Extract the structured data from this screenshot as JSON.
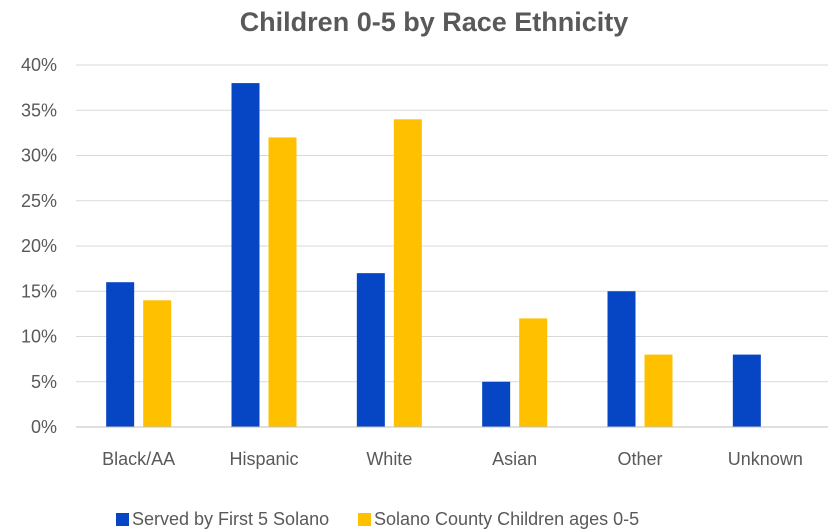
{
  "chart_data": {
    "type": "bar",
    "title": "Children 0-5 by Race Ethnicity",
    "categories": [
      "Black/AA",
      "Hispanic",
      "White",
      "Asian",
      "Other",
      "Unknown"
    ],
    "series": [
      {
        "name": "Served by First 5 Solano",
        "color": "#0645c3",
        "values": [
          16,
          38,
          17,
          5,
          15,
          8
        ]
      },
      {
        "name": "Solano County Children ages 0-5",
        "color": "#ffc000",
        "values": [
          14,
          32,
          34,
          12,
          8,
          null
        ]
      }
    ],
    "ylim": [
      0,
      40
    ],
    "yticks": [
      "0%",
      "5%",
      "10%",
      "15%",
      "20%",
      "25%",
      "30%",
      "35%",
      "40%"
    ],
    "ytick_values": [
      0,
      5,
      10,
      15,
      20,
      25,
      30,
      35,
      40
    ],
    "grid": true,
    "legend_position": "bottom"
  }
}
